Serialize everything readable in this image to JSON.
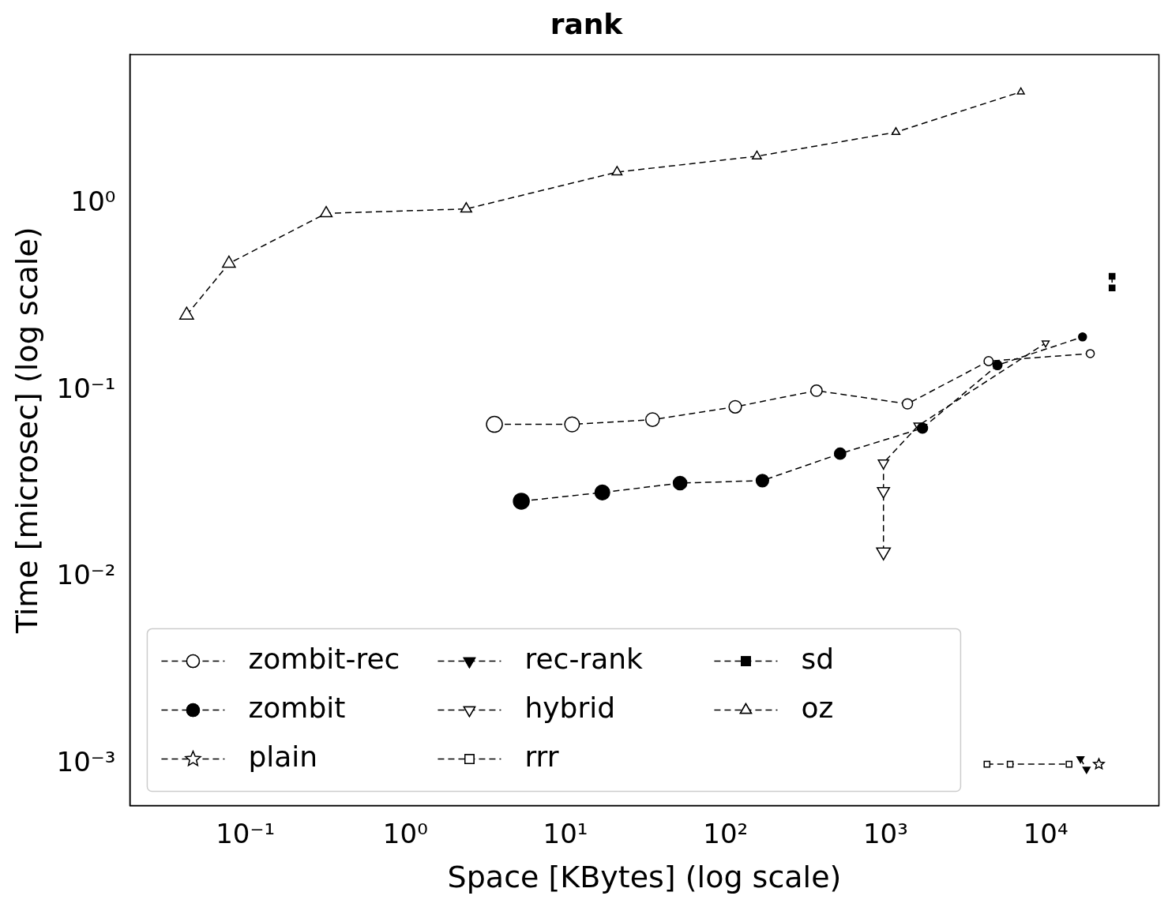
{
  "chart_data": {
    "type": "line",
    "title": "rank",
    "xlabel": "Space [KBytes] (log scale)",
    "ylabel": "Time [microsec] (log scale)",
    "log": "xy",
    "grid": false,
    "legend": "bottom left",
    "line_style": "dashed",
    "xlim": [
      0.019,
      51000
    ],
    "ylim": [
      0.00062,
      6.3
    ],
    "xticks": [
      {
        "value": 0.1,
        "label": "10⁻¹"
      },
      {
        "value": 1,
        "label": "10⁰"
      },
      {
        "value": 10,
        "label": "10¹"
      },
      {
        "value": 100,
        "label": "10²"
      },
      {
        "value": 1000,
        "label": "10³"
      },
      {
        "value": 10000,
        "label": "10⁴"
      }
    ],
    "yticks": [
      {
        "value": 0.001,
        "label": "10⁻³"
      },
      {
        "value": 0.01,
        "label": "10⁻²"
      },
      {
        "value": 0.1,
        "label": "10⁻¹"
      },
      {
        "value": 1,
        "label": "10⁰"
      }
    ],
    "series": [
      {
        "name": "zombit-rec",
        "color": "#000000",
        "marker": "circle",
        "colors": [
          "#ffffff",
          "#ffffff",
          "#ffffff",
          "#ffffff",
          "#ffffff",
          "#ffffff",
          "#ffffff",
          "#ffffff"
        ],
        "x": [
          3.6,
          11,
          35,
          115,
          370,
          1370,
          4400,
          19000
        ],
        "values": [
          0.066,
          0.066,
          0.07,
          0.082,
          0.1,
          0.085,
          0.144,
          0.158
        ]
      },
      {
        "name": "zombit",
        "color": "#000000",
        "marker": "circle",
        "x": [
          5.3,
          17,
          52,
          170,
          520,
          1700,
          5000,
          17000
        ],
        "values": [
          0.0256,
          0.0285,
          0.032,
          0.033,
          0.046,
          0.063,
          0.137,
          0.194
        ]
      },
      {
        "name": "plain",
        "color": "#000000",
        "marker": "star",
        "colors": [
          "#ffffff"
        ],
        "x": [
          21500
        ],
        "values": [
          0.001
        ]
      },
      {
        "name": "rec-rank",
        "color": "#000000",
        "marker": "triangle-down",
        "x": [
          16500,
          18000
        ],
        "values": [
          0.00107,
          0.00094
        ]
      },
      {
        "name": "hybrid",
        "color": "#000000",
        "marker": "triangle-down",
        "colors": [
          "#ffffff",
          "#ffffff",
          "#ffffff",
          "#ffffff",
          "#ffffff"
        ],
        "x": [
          970,
          970,
          970,
          1600,
          10000
        ],
        "values": [
          0.0137,
          0.029,
          0.041,
          0.065,
          0.18
        ]
      },
      {
        "name": "rrr",
        "color": "#000000",
        "marker": "square",
        "colors": [
          "#ffffff",
          "#ffffff",
          "#ffffff"
        ],
        "x": [
          4300,
          6000,
          14000
        ],
        "values": [
          0.001,
          0.001,
          0.001
        ]
      },
      {
        "name": "sd",
        "color": "#000000",
        "marker": "square",
        "x": [
          26000,
          26000
        ],
        "values": [
          0.41,
          0.355
        ]
      },
      {
        "name": "oz",
        "color": "#000000",
        "marker": "triangle",
        "colors": [
          "#ffffff",
          "#ffffff",
          "#ffffff",
          "#ffffff",
          "#ffffff",
          "#ffffff",
          "#ffffff",
          "#ffffff"
        ],
        "x": [
          0.043,
          0.079,
          0.32,
          2.4,
          21,
          157,
          1160,
          7000
        ],
        "values": [
          0.254,
          0.48,
          0.89,
          0.94,
          1.48,
          1.8,
          2.42,
          3.98
        ]
      }
    ]
  }
}
